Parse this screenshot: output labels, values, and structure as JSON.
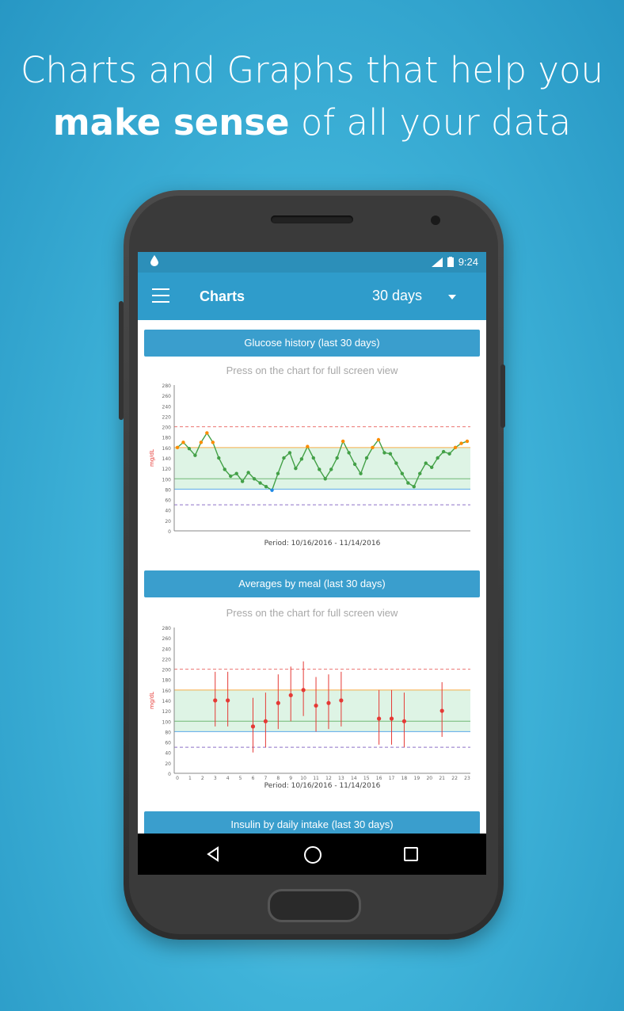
{
  "headline": {
    "line1": "Charts and Graphs that help you",
    "bold": "make sense",
    "rest": " of all your data"
  },
  "status": {
    "time": "9:24"
  },
  "appbar": {
    "title": "Charts",
    "range": "30 days"
  },
  "cards": [
    {
      "title": "Glucose history (last 30 days)",
      "hint": "Press on the chart for full screen view",
      "period": "Period: 10/16/2016 - 11/14/2016"
    },
    {
      "title": "Averages by meal (last 30 days)",
      "hint": "Press on the chart for full screen view",
      "period": "Period: 10/16/2016 - 11/14/2016"
    },
    {
      "title": "Insulin by daily intake (last 30 days)"
    }
  ],
  "colors": {
    "accent": "#2f9ccb",
    "hyper": "#e53935",
    "high": "#fb8c00",
    "target": "#43a047",
    "low": "#1e88e5",
    "hypo": "#5e35b1"
  },
  "chart_data": [
    {
      "type": "line",
      "title": "Glucose history (last 30 days)",
      "ylabel": "mg/dL",
      "xlabel": "Period: 10/16/2016 - 11/14/2016",
      "ylim": [
        0,
        280
      ],
      "yticks": [
        0,
        20,
        40,
        60,
        80,
        100,
        120,
        140,
        160,
        180,
        200,
        220,
        240,
        260,
        280
      ],
      "bands": {
        "hyper": 200,
        "high": 160,
        "target": 100,
        "low": 80,
        "hypo": 50
      },
      "series": [
        {
          "values": [
            160,
            170,
            158,
            145,
            170,
            188,
            170,
            140,
            118,
            105,
            110,
            95,
            112,
            100,
            92,
            85,
            78,
            110,
            140,
            150,
            120,
            138,
            162,
            140,
            118,
            100,
            118,
            140,
            172,
            150,
            128,
            110,
            140,
            160,
            175,
            150,
            148,
            130,
            110,
            92,
            85,
            110,
            130,
            122,
            140,
            152,
            148,
            160,
            168,
            172
          ]
        }
      ]
    },
    {
      "type": "scatter",
      "title": "Averages by meal (last 30 days)",
      "ylabel": "mg/dL",
      "xlabel": "Period: 10/16/2016 - 11/14/2016",
      "ylim": [
        0,
        280
      ],
      "yticks": [
        0,
        20,
        40,
        60,
        80,
        100,
        120,
        140,
        160,
        180,
        200,
        220,
        240,
        260,
        280
      ],
      "x": [
        0,
        1,
        2,
        3,
        4,
        5,
        6,
        7,
        8,
        9,
        10,
        11,
        12,
        13,
        14,
        15,
        16,
        17,
        18,
        19,
        20,
        21,
        22,
        23
      ],
      "bands": {
        "hyper": 200,
        "high": 160,
        "target": 100,
        "low": 80,
        "hypo": 50
      },
      "series": [
        {
          "points": [
            [
              3,
              140
            ],
            [
              4,
              140
            ],
            [
              6,
              90
            ],
            [
              7,
              100
            ],
            [
              8,
              135
            ],
            [
              9,
              150
            ],
            [
              10,
              160
            ],
            [
              11,
              130
            ],
            [
              12,
              135
            ],
            [
              13,
              140
            ],
            [
              16,
              105
            ],
            [
              17,
              105
            ],
            [
              18,
              100
            ],
            [
              21,
              120
            ]
          ]
        }
      ]
    }
  ]
}
